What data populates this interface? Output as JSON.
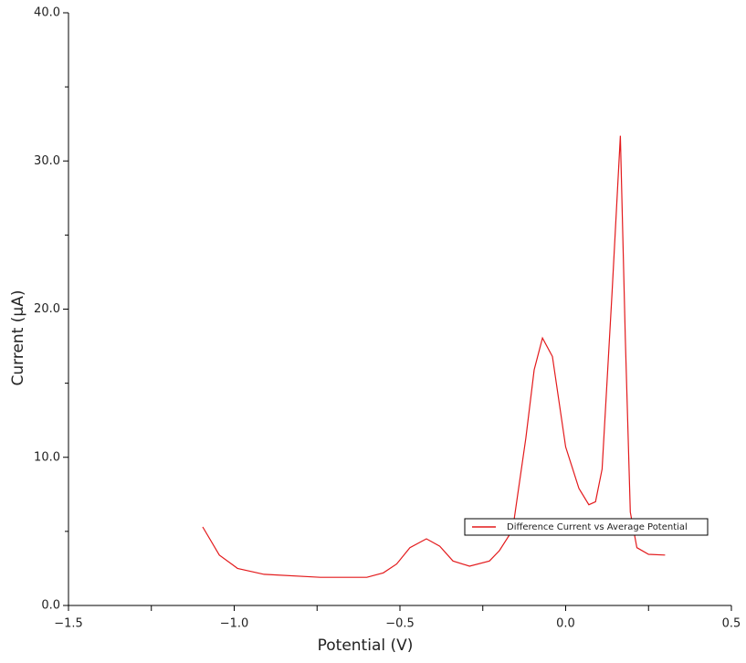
{
  "chart_data": {
    "type": "line",
    "xlabel": "Potential (V)",
    "ylabel": "Current (µA)",
    "x": [
      -1.095,
      -1.045,
      -0.99,
      -0.91,
      -0.74,
      -0.6,
      -0.55,
      -0.51,
      -0.47,
      -0.42,
      -0.38,
      -0.34,
      -0.29,
      -0.23,
      -0.2,
      -0.16,
      -0.12,
      -0.095,
      -0.07,
      -0.04,
      0.0,
      0.04,
      0.07,
      0.09,
      0.11,
      0.14,
      0.165,
      0.18,
      0.195,
      0.215,
      0.25,
      0.3
    ],
    "series": [
      {
        "name": "Difference Current vs Average Potential",
        "color": "#e31a1c",
        "values": [
          5.3,
          3.4,
          2.5,
          2.1,
          1.9,
          1.9,
          2.2,
          2.8,
          3.9,
          4.5,
          4.0,
          3.0,
          2.65,
          3.0,
          3.7,
          5.1,
          11.3,
          15.9,
          18.05,
          16.8,
          10.7,
          7.9,
          6.8,
          7.0,
          9.2,
          21.1,
          31.7,
          18.1,
          6.3,
          3.9,
          3.45,
          3.4
        ]
      }
    ],
    "xlim": [
      -1.5,
      0.5
    ],
    "xticks": [
      {
        "value": -1.5,
        "label": "−1.5"
      },
      {
        "value": -1.0,
        "label": "−1.0"
      },
      {
        "value": -0.5,
        "label": "−0.5"
      },
      {
        "value": 0,
        "label": "0.0"
      },
      {
        "value": 0.5,
        "label": "0.5"
      }
    ],
    "xminorticks": [
      -1.25,
      -0.75,
      -0.25,
      0.25
    ],
    "ylim": [
      0,
      40
    ],
    "yticks": [
      {
        "value": 0,
        "label": "0.0"
      },
      {
        "value": 10,
        "label": "10.0"
      },
      {
        "value": 20,
        "label": "20.0"
      },
      {
        "value": 30,
        "label": "30.0"
      },
      {
        "value": 40,
        "label": "40.0"
      }
    ],
    "yminorticks": [
      5,
      15,
      25,
      35
    ],
    "grid": false,
    "legend_position": "lower right"
  }
}
